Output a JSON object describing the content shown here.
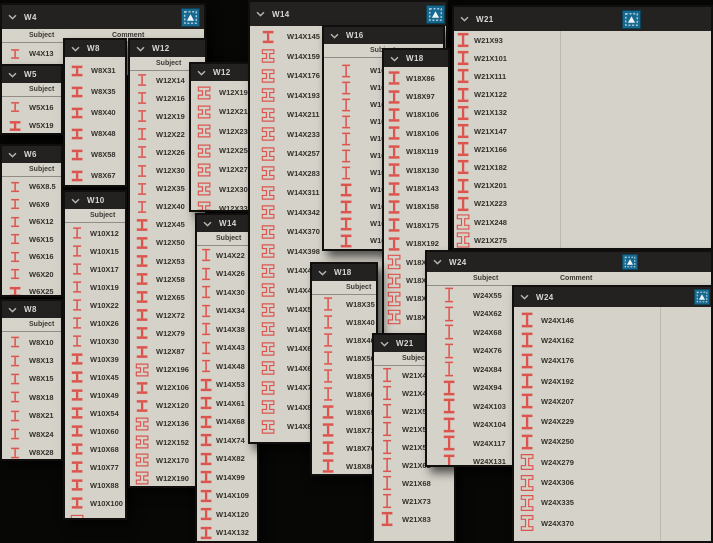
{
  "colors": {
    "background": "#070706",
    "panel_bg": "#d5d2c9",
    "titlebar_bg": "#232220",
    "titlebar_text": "#d8d7d4",
    "item_text": "#33322b",
    "column_header_text": "#3b3a33",
    "profile_icon_red": "#dc544e",
    "tool_button_blue": "#17698f"
  },
  "icons": {
    "collapse_chevron": "chevron-down",
    "tool_button": "zoom-selection",
    "row_icon": "steel-wide-flange-profile"
  },
  "column_headers": {
    "subject": "Subject",
    "comment": "Comment"
  },
  "panels": [
    {
      "id": "w4",
      "title": "W4",
      "has_tool_button": true,
      "columns": [
        "Subject",
        "Comment"
      ],
      "items": [
        "W4X13"
      ]
    },
    {
      "id": "w5",
      "title": "W5",
      "has_tool_button": false,
      "columns": [
        "Subject"
      ],
      "items": [
        "W5X16",
        "W5X19"
      ]
    },
    {
      "id": "w6",
      "title": "W6",
      "has_tool_button": false,
      "columns": [
        "Subject"
      ],
      "items": [
        "W6X8.5",
        "W6X9",
        "W6X12",
        "W6X15",
        "W6X16",
        "W6X20",
        "W6X25"
      ]
    },
    {
      "id": "w8a",
      "title": "W8",
      "has_tool_button": false,
      "columns": [
        "Subject"
      ],
      "items": [
        "W8X10",
        "W8X13",
        "W8X15",
        "W8X18",
        "W8X21",
        "W8X24",
        "W8X28"
      ]
    },
    {
      "id": "w8b",
      "title": "W8",
      "has_tool_button": false,
      "columns": [],
      "items": [
        "W8X31",
        "W8X35",
        "W8X40",
        "W8X48",
        "W8X58",
        "W8X67"
      ]
    },
    {
      "id": "w10",
      "title": "W10",
      "has_tool_button": false,
      "columns": [
        "Subject"
      ],
      "items": [
        "W10X12",
        "W10X15",
        "W10X17",
        "W10X19",
        "W10X22",
        "W10X26",
        "W10X30",
        "W10X39",
        "W10X45",
        "W10X49",
        "W10X54",
        "W10X60",
        "W10X68",
        "W10X77",
        "W10X88",
        "W10X100",
        "W10X112"
      ]
    },
    {
      "id": "w12a",
      "title": "W12",
      "has_tool_button": false,
      "columns": [
        "Subject"
      ],
      "items": [
        "W12X14",
        "W12X16",
        "W12X19",
        "W12X22",
        "W12X26",
        "W12X30",
        "W12X35",
        "W12X40",
        "W12X45",
        "W12X50",
        "W12X53",
        "W12X58",
        "W12X65",
        "W12X72",
        "W12X79",
        "W12X87",
        "W12X196",
        "W12X106",
        "W12X120",
        "W12X136",
        "W12X152",
        "W12X170",
        "W12X190"
      ]
    },
    {
      "id": "w12b",
      "title": "W12",
      "has_tool_button": false,
      "columns": [],
      "items": [
        "W12X190",
        "W12X210",
        "W12X230",
        "W12X252",
        "W12X279",
        "W12X305",
        "W12X336"
      ]
    },
    {
      "id": "w14a",
      "title": "W14",
      "has_tool_button": false,
      "columns": [
        "Subject"
      ],
      "items": [
        "W14X22",
        "W14X26",
        "W14X30",
        "W14X34",
        "W14X38",
        "W14X43",
        "W14X48",
        "W14X53",
        "W14X61",
        "W14X68",
        "W14X74",
        "W14X82",
        "W14X99",
        "W14X109",
        "W14X120",
        "W14X132"
      ]
    },
    {
      "id": "w14b",
      "title": "W14",
      "has_tool_button": true,
      "columns": [],
      "items": [
        "W14X145",
        "W14X159",
        "W14X176",
        "W14X193",
        "W14X211",
        "W14X233",
        "W14X257",
        "W14X283",
        "W14X311",
        "W14X342",
        "W14X370",
        "W14X398",
        "W14X426",
        "W14X455",
        "W14X500",
        "W14X550",
        "W14X605",
        "W14X665",
        "W14X730",
        "W14X808",
        "W14X873"
      ]
    },
    {
      "id": "w16",
      "title": "W16",
      "has_tool_button": false,
      "columns": [
        "Subject"
      ],
      "items": [
        "W16X26",
        "W16X31",
        "W16X36",
        "W16X40",
        "W16X45",
        "W16X50",
        "W16X57",
        "W16X67",
        "W16X77",
        "W16X89",
        "W16X100"
      ]
    },
    {
      "id": "w18a",
      "title": "W18",
      "has_tool_button": false,
      "columns": [],
      "items": [
        "W18X86",
        "W18X97",
        "W18X106",
        "W18X106",
        "W18X119",
        "W18X130",
        "W18X143",
        "W18X158",
        "W18X175",
        "W18X192",
        "W18X211",
        "W18X234",
        "W18X258",
        "W18X283"
      ]
    },
    {
      "id": "w18b",
      "title": "W18",
      "has_tool_button": false,
      "columns": [
        "Subject"
      ],
      "items": [
        "W18X35",
        "W18X40",
        "W18X46",
        "W18X50",
        "W18X55",
        "W18X60",
        "W18X65",
        "W18X71",
        "W18X76",
        "W18X86"
      ]
    },
    {
      "id": "w21low",
      "title": "W21",
      "has_tool_button": false,
      "columns": [
        "Subject"
      ],
      "items": [
        "W21X44",
        "W21X48",
        "W21X50",
        "W21X55",
        "W21X57",
        "W21X62",
        "W21X68",
        "W21X73",
        "W21X83"
      ]
    },
    {
      "id": "w21tr",
      "title": "W21",
      "has_tool_button": true,
      "columns": [],
      "items": [
        "W21X93",
        "W21X101",
        "W21X111",
        "W21X122",
        "W21X132",
        "W21X147",
        "W21X166",
        "W21X182",
        "W21X201",
        "W21X223",
        "W21X248",
        "W21X275"
      ]
    },
    {
      "id": "w24mid",
      "title": "W24",
      "has_tool_button": true,
      "columns": [
        "Subject",
        "Comment"
      ],
      "items": [
        "W24X55",
        "W24X62",
        "W24X68",
        "W24X76",
        "W24X84",
        "W24X94",
        "W24X103",
        "W24X104",
        "W24X117",
        "W24X131"
      ]
    },
    {
      "id": "w24br",
      "title": "W24",
      "has_tool_button": true,
      "columns": [],
      "items": [
        "W24X146",
        "W24X162",
        "W24X176",
        "W24X192",
        "W24X207",
        "W24X229",
        "W24X250",
        "W24X279",
        "W24X306",
        "W24X335",
        "W24X370"
      ]
    }
  ]
}
